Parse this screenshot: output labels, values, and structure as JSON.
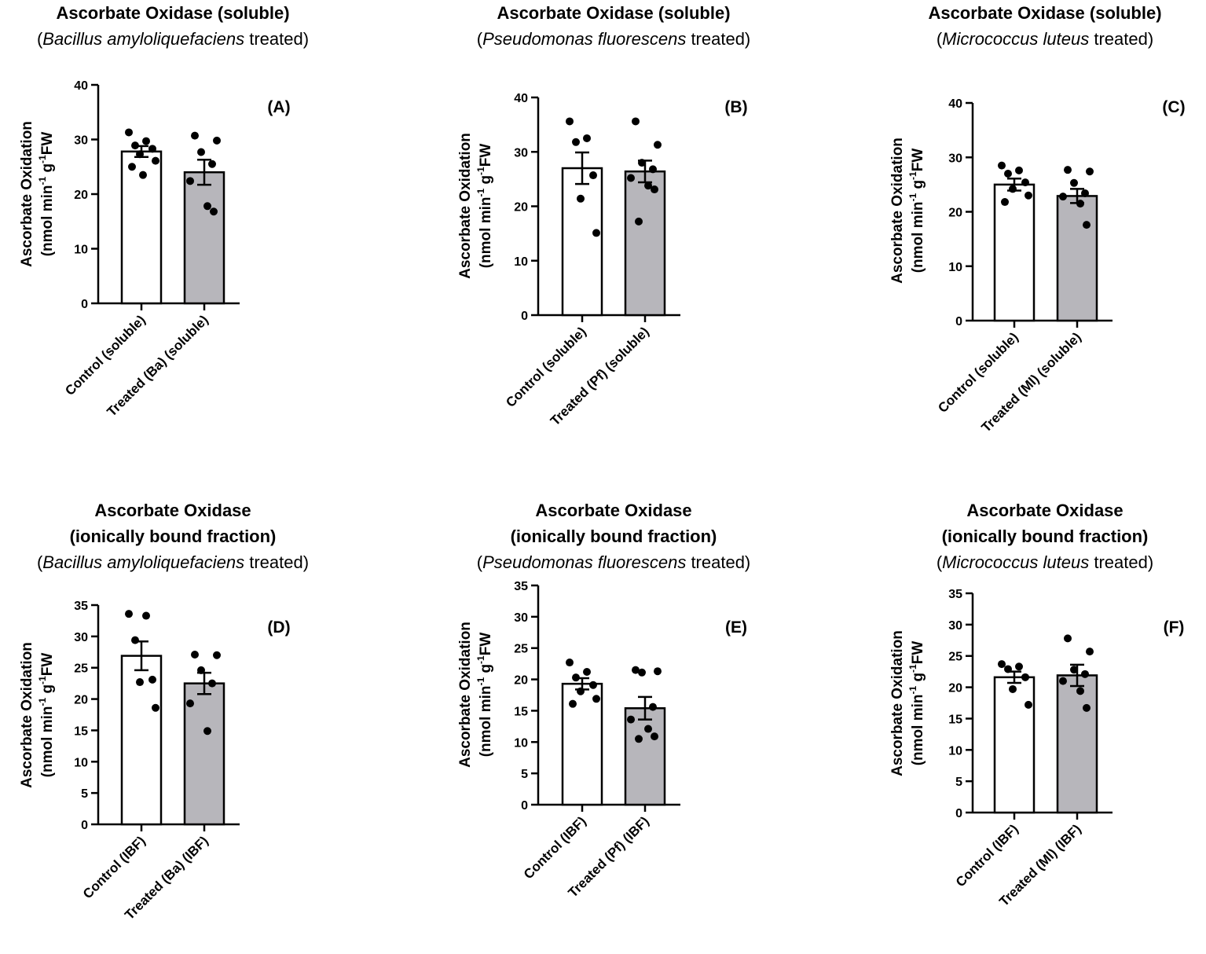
{
  "colors": {
    "control_fill": "#ffffff",
    "treated_fill": "#b7b6bb",
    "stroke": "#000000",
    "point": "#000000"
  },
  "chart_data": [
    {
      "panel": "(A)",
      "type": "bar",
      "title": "Ascorbate Oxidase (soluble)",
      "title_lines": [
        "Ascorbate Oxidase (soluble)"
      ],
      "species": "Bacillus amyloliquefaciens",
      "species_suffix": " treated",
      "ylabel_line1": "Ascorbate Oxidation",
      "ylabel_line2": {
        "a": "(nmol min",
        "s1": "-1",
        "b": " g",
        "s2": "-1",
        "c": "FW"
      },
      "ylim": [
        0,
        40
      ],
      "yticks": [
        0,
        10,
        20,
        30,
        40
      ],
      "categories": [
        "Control (soluble)",
        "Treated (Ba) (soluble)"
      ],
      "values": [
        27.8,
        24.0
      ],
      "sem": [
        1.0,
        2.3
      ],
      "points": [
        [
          31.3,
          29.7,
          28.9,
          28.3,
          27.3,
          26.1,
          25.0,
          23.5
        ],
        [
          30.7,
          29.8,
          27.7,
          25.5,
          22.4,
          17.8,
          16.8
        ]
      ]
    },
    {
      "panel": "(B)",
      "type": "bar",
      "title": "Ascorbate Oxidase (soluble)",
      "title_lines": [
        "Ascorbate Oxidase (soluble)"
      ],
      "species": "Pseudomonas fluorescens",
      "species_suffix": " treated",
      "ylabel_line1": "Ascorbate Oxidation",
      "ylabel_line2": {
        "a": "(nmol min",
        "s1": "-1",
        "b": " g",
        "s2": "-1",
        "c": "FW"
      },
      "ylim": [
        0,
        40
      ],
      "yticks": [
        0,
        10,
        20,
        30,
        40
      ],
      "categories": [
        "Control (soluble)",
        "Treated (Pf) (soluble)"
      ],
      "values": [
        27.0,
        26.4
      ],
      "sem": [
        2.9,
        2.0
      ],
      "points": [
        [
          35.6,
          32.5,
          31.8,
          25.7,
          21.4,
          15.1
        ],
        [
          35.6,
          31.3,
          28.0,
          26.8,
          25.2,
          23.8,
          23.1,
          17.2
        ]
      ]
    },
    {
      "panel": "(C)",
      "type": "bar",
      "title": "Ascorbate Oxidase (soluble)",
      "title_lines": [
        "Ascorbate Oxidase (soluble)"
      ],
      "species": "Micrococcus luteus",
      "species_suffix": " treated",
      "ylabel_line1": "Ascorbate Oxidation",
      "ylabel_line2": {
        "a": "(nmol min",
        "s1": "-1",
        "b": " g",
        "s2": "-1",
        "c": "FW"
      },
      "ylim": [
        0,
        40
      ],
      "yticks": [
        0,
        10,
        20,
        30,
        40
      ],
      "categories": [
        "Control (soluble)",
        "Treated (Ml) (soluble)"
      ],
      "values": [
        25.0,
        22.9
      ],
      "sem": [
        1.1,
        1.3
      ],
      "points": [
        [
          28.5,
          27.6,
          27.0,
          25.4,
          24.2,
          23.0,
          21.8
        ],
        [
          27.7,
          27.4,
          25.3,
          23.4,
          22.8,
          21.5,
          17.6
        ]
      ]
    },
    {
      "panel": "(D)",
      "type": "bar",
      "title": "Ascorbate Oxidase (ionically bound fraction)",
      "title_lines": [
        "Ascorbate Oxidase",
        "(ionically bound fraction)"
      ],
      "species": "Bacillus amyloliquefaciens",
      "species_suffix": " treated",
      "ylabel_line1": "Ascorbate Oxidation",
      "ylabel_line2": {
        "a": "(nmol min",
        "s1": "-1",
        "b": " g",
        "s2": "-1",
        "c": "FW"
      },
      "ylim": [
        0,
        35
      ],
      "yticks": [
        0,
        5,
        10,
        15,
        20,
        25,
        30,
        35
      ],
      "categories": [
        "Control (IBF)",
        "Treated (Ba) (IBF)"
      ],
      "values": [
        26.9,
        22.5
      ],
      "sem": [
        2.3,
        1.7
      ],
      "points": [
        [
          33.6,
          33.3,
          29.4,
          23.1,
          22.7,
          18.6
        ],
        [
          27.1,
          27.0,
          24.6,
          22.5,
          19.3,
          14.9
        ]
      ]
    },
    {
      "panel": "(E)",
      "type": "bar",
      "title": "Ascorbate Oxidase (ionically bound fraction)",
      "title_lines": [
        "Ascorbate Oxidase",
        "(ionically bound fraction)"
      ],
      "species": "Pseudomonas fluorescens",
      "species_suffix": " treated",
      "ylabel_line1": "Ascorbate Oxidation",
      "ylabel_line2": {
        "a": "(nmol min",
        "s1": "-1",
        "b": " g",
        "s2": "-1",
        "c": "FW"
      },
      "ylim": [
        0,
        35
      ],
      "yticks": [
        0,
        5,
        10,
        15,
        20,
        25,
        30,
        35
      ],
      "categories": [
        "Control (IBF)",
        "Treated (Pf) (IBF)"
      ],
      "values": [
        19.3,
        15.4
      ],
      "sem": [
        0.9,
        1.8
      ],
      "points": [
        [
          22.7,
          21.2,
          20.3,
          19.1,
          18.1,
          16.9,
          16.1
        ],
        [
          21.5,
          21.3,
          21.1,
          15.6,
          13.6,
          12.1,
          10.9,
          10.5
        ]
      ]
    },
    {
      "panel": "(F)",
      "type": "bar",
      "title": "Ascorbate Oxidase (ionically bound fraction)",
      "title_lines": [
        "Ascorbate Oxidase",
        "(ionically bound fraction)"
      ],
      "species": "Micrococcus luteus",
      "species_suffix": " treated",
      "ylabel_line1": "Ascorbate Oxidation",
      "ylabel_line2": {
        "a": "(nmol min",
        "s1": "-1",
        "b": " g",
        "s2": "-1",
        "c": "FW"
      },
      "ylim": [
        0,
        35
      ],
      "yticks": [
        0,
        5,
        10,
        15,
        20,
        25,
        30,
        35
      ],
      "categories": [
        "Control (IBF)",
        "Treated (Ml) (IBF)"
      ],
      "values": [
        21.6,
        21.9
      ],
      "sem": [
        0.9,
        1.7
      ],
      "points": [
        [
          23.7,
          23.3,
          22.9,
          21.6,
          19.7,
          17.2
        ],
        [
          27.8,
          25.7,
          22.8,
          22.1,
          21.0,
          19.4,
          16.7
        ]
      ]
    }
  ]
}
